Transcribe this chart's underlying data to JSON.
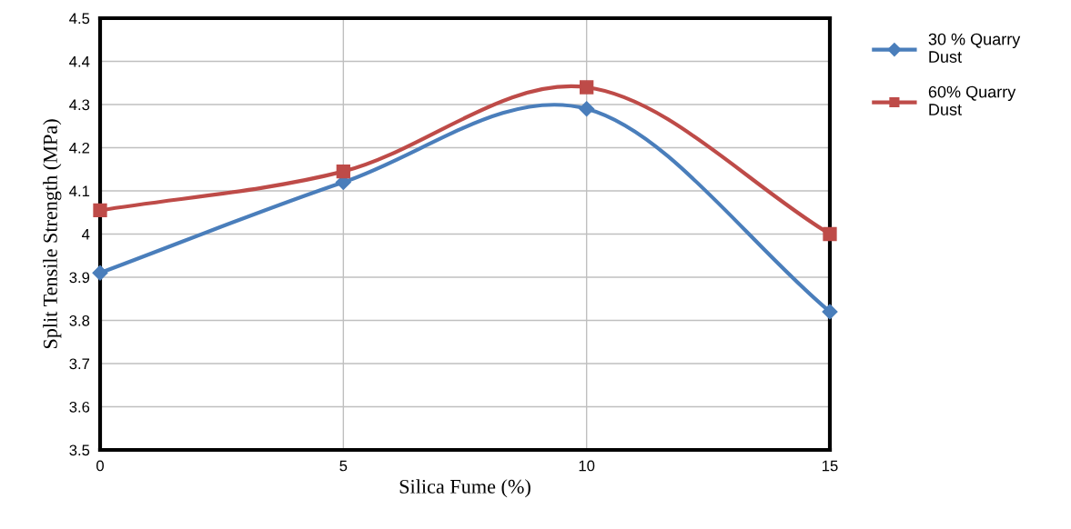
{
  "chart_data": {
    "type": "line",
    "xlabel": "Silica Fume (%)",
    "ylabel": "Split Tensile Strength (MPa)",
    "x": [
      0,
      5,
      10,
      15
    ],
    "series": [
      {
        "name": "30 % Quarry Dust",
        "color": "#4a7ebb",
        "marker": "diamond",
        "values": [
          3.91,
          4.12,
          4.29,
          3.82
        ]
      },
      {
        "name": "60% Quarry Dust",
        "color": "#be4b48",
        "marker": "square",
        "values": [
          4.055,
          4.145,
          4.34,
          4.0
        ]
      }
    ],
    "xlim": [
      0,
      15
    ],
    "xticks": [
      0,
      5,
      10,
      15
    ],
    "ylim": [
      3.5,
      4.5
    ],
    "yticks": [
      3.5,
      3.6,
      3.7,
      3.8,
      3.9,
      4,
      4.1,
      4.2,
      4.3,
      4.4,
      4.5
    ],
    "grid": true,
    "legend": "right",
    "line_style": "solid"
  }
}
